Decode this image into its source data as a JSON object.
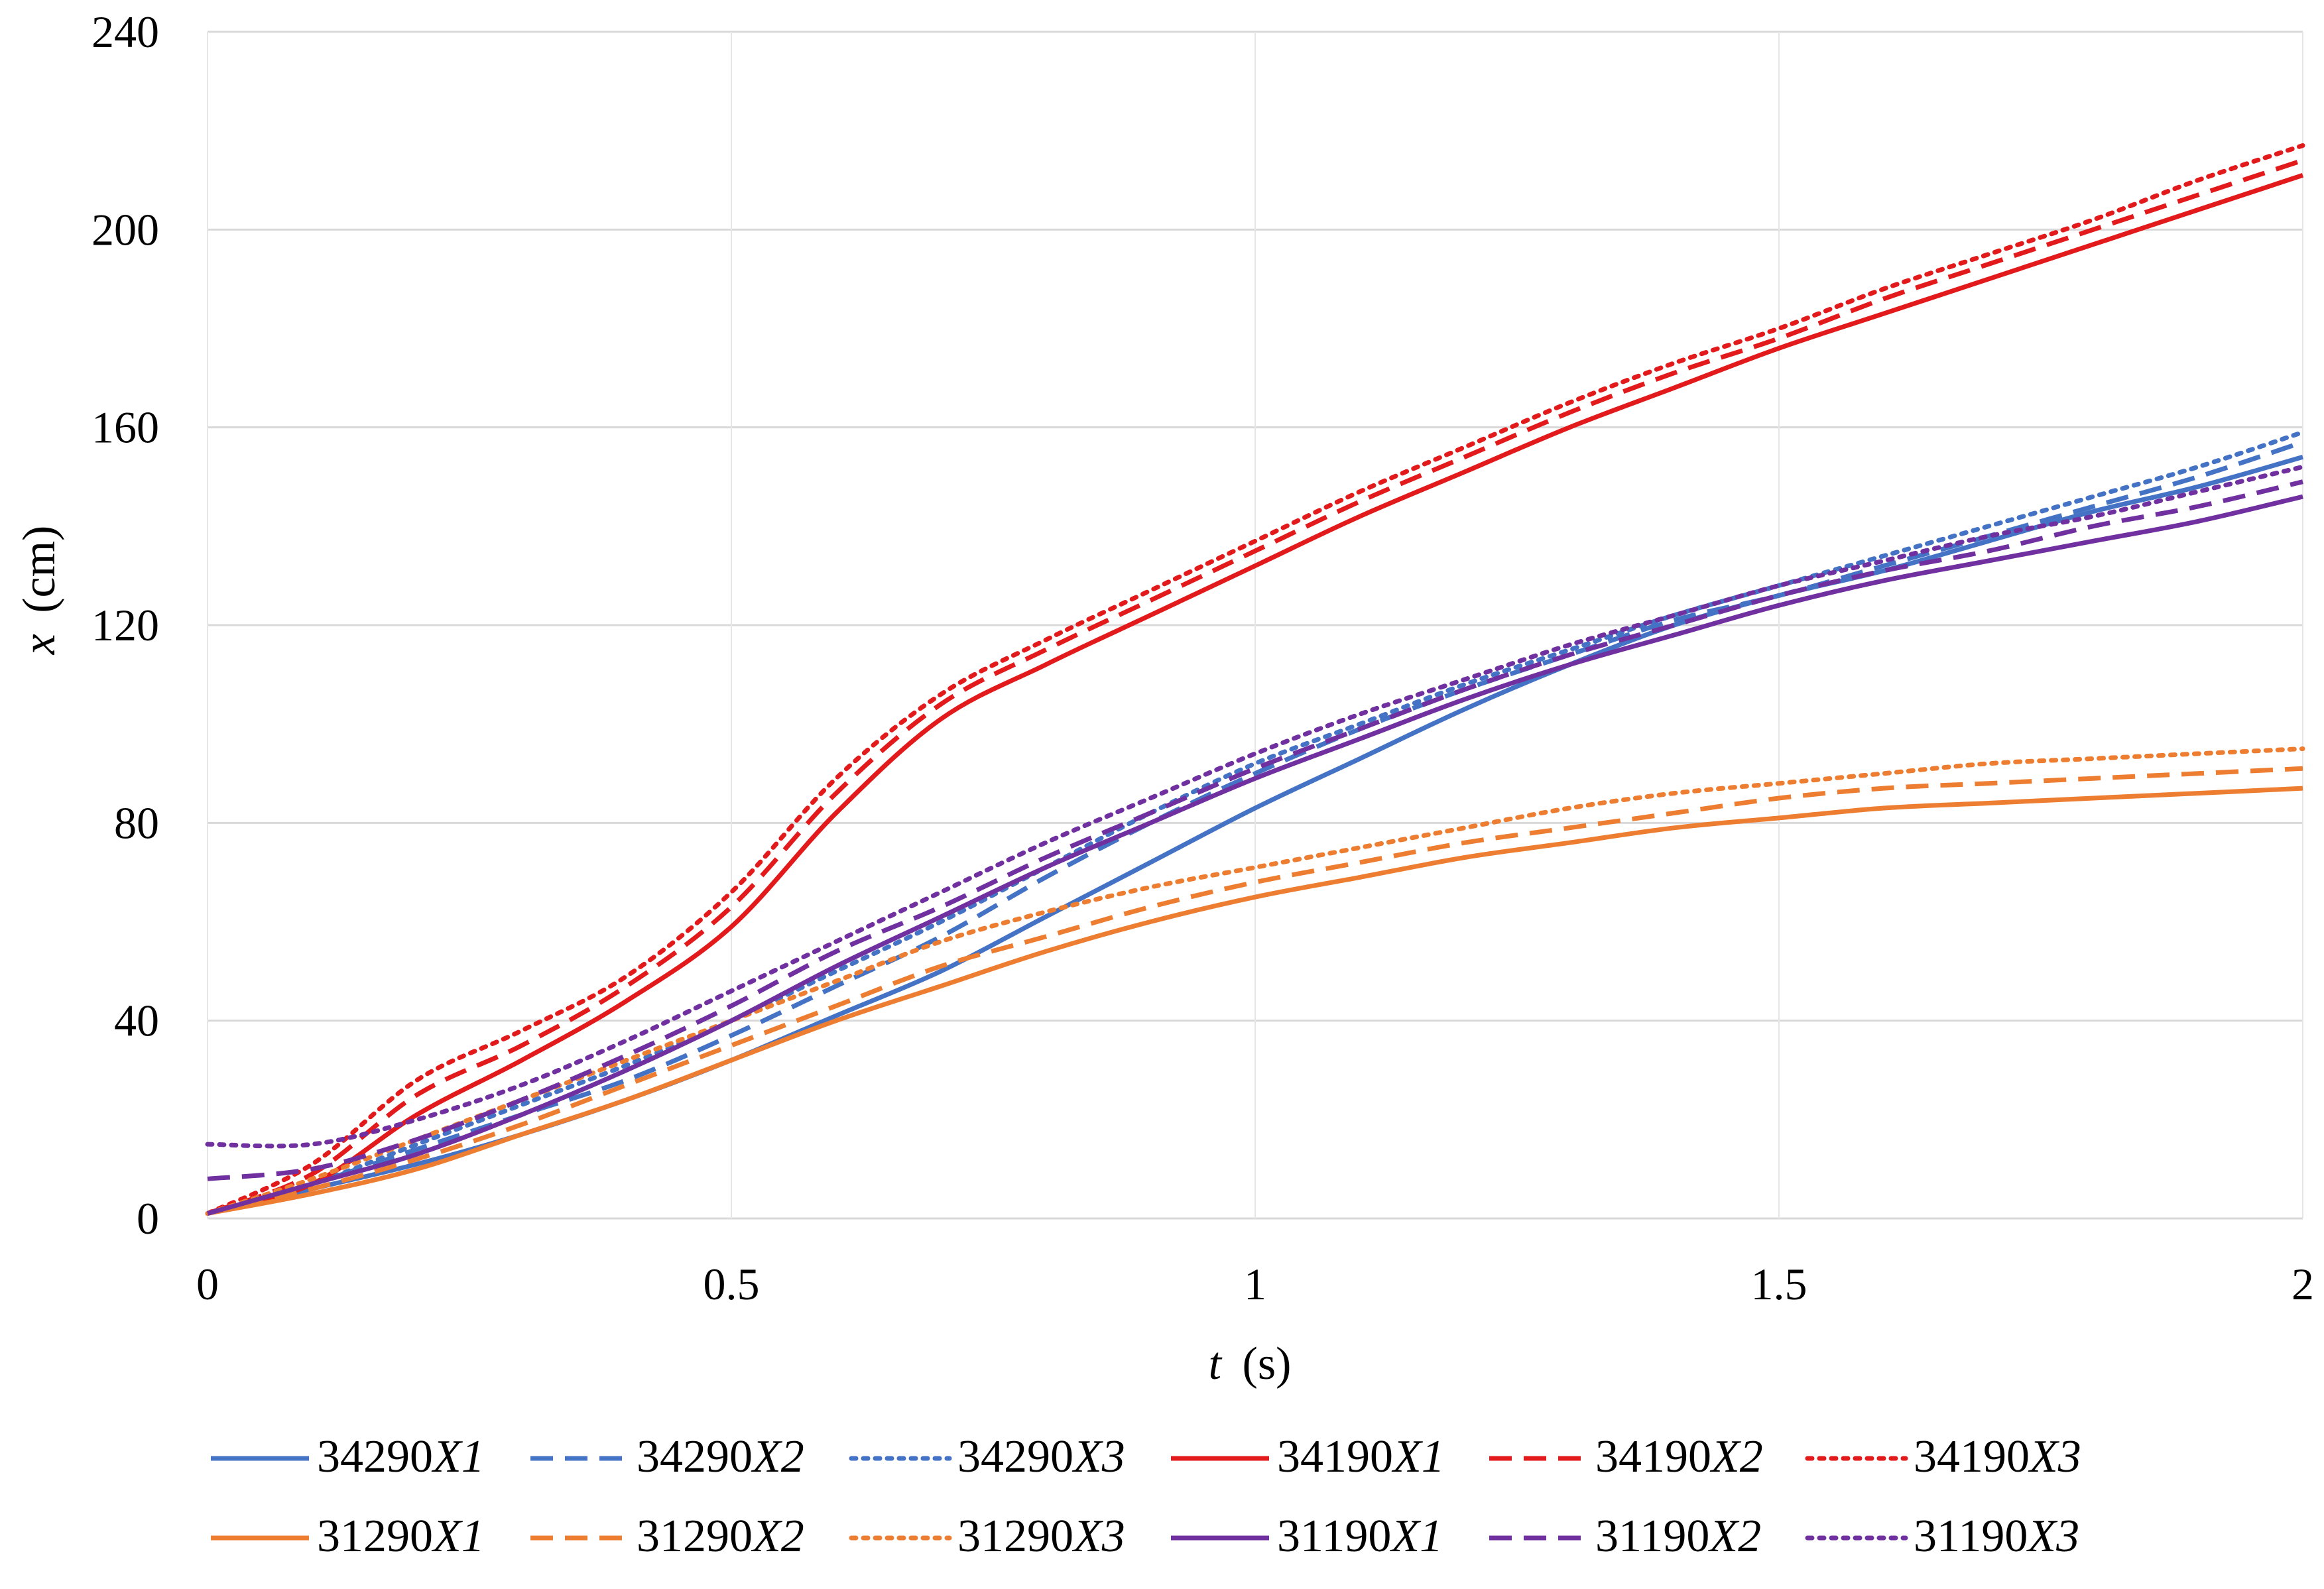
{
  "chart_data": {
    "type": "line",
    "title": "",
    "xlabel_var": "t",
    "xlabel_unit": "(s)",
    "ylabel_var": "x",
    "ylabel_unit": "(cm)",
    "xlim": [
      0,
      2
    ],
    "ylim": [
      0,
      240
    ],
    "xticks": [
      0,
      0.5,
      1,
      1.5,
      2
    ],
    "xtick_labels": [
      "0",
      "0.5",
      "1",
      "1.5",
      "2"
    ],
    "yticks": [
      0,
      40,
      80,
      120,
      160,
      200,
      240
    ],
    "ytick_labels": [
      "0",
      "40",
      "80",
      "120",
      "160",
      "200",
      "240"
    ],
    "grid": true,
    "legend_position": "bottom",
    "x": [
      0,
      0.1,
      0.2,
      0.3,
      0.4,
      0.5,
      0.6,
      0.7,
      0.8,
      0.9,
      1.0,
      1.1,
      1.2,
      1.3,
      1.4,
      1.5,
      1.6,
      1.7,
      1.8,
      1.9,
      2.0
    ],
    "series": [
      {
        "name_prefix": "34290",
        "name_var": "X1",
        "color": "#4472C4",
        "dash": "solid",
        "values": [
          1,
          6,
          11,
          17,
          24,
          32,
          41,
          50,
          61,
          72,
          83,
          93,
          103,
          112,
          120,
          126,
          131,
          137,
          143,
          148,
          154
        ]
      },
      {
        "name_prefix": "34290",
        "name_var": "X2",
        "color": "#4472C4",
        "dash": "dashed",
        "values": [
          1,
          7,
          14,
          21,
          28,
          37,
          47,
          57,
          69,
          80,
          90,
          99,
          107,
          114,
          121,
          126,
          132,
          138,
          144,
          150,
          157
        ]
      },
      {
        "name_prefix": "34290",
        "name_var": "X3",
        "color": "#4472C4",
        "dash": "dotted",
        "values": [
          1,
          7,
          15,
          23,
          31,
          40,
          50,
          60,
          71,
          82,
          92,
          100,
          108,
          115,
          122,
          128,
          134,
          140,
          146,
          152,
          159
        ]
      },
      {
        "name_prefix": "34190",
        "name_var": "X1",
        "color": "#E31A1C",
        "dash": "solid",
        "values": [
          1,
          7,
          21,
          32,
          44,
          59,
          82,
          101,
          112,
          122,
          132,
          142,
          151,
          160,
          168,
          176,
          183,
          190,
          197,
          204,
          211
        ]
      },
      {
        "name_prefix": "34190",
        "name_var": "X2",
        "color": "#E31A1C",
        "dash": "dashed",
        "values": [
          1,
          9,
          25,
          35,
          47,
          63,
          86,
          104,
          115,
          125,
          135,
          145,
          154,
          163,
          171,
          178,
          186,
          193,
          200,
          207,
          214
        ]
      },
      {
        "name_prefix": "34190",
        "name_var": "X3",
        "color": "#E31A1C",
        "dash": "dotted",
        "values": [
          1,
          11,
          28,
          38,
          49,
          66,
          89,
          106,
          117,
          127,
          137,
          147,
          156,
          165,
          173,
          180,
          188,
          195,
          202,
          210,
          217
        ]
      },
      {
        "name_prefix": "31290",
        "name_var": "X1",
        "color": "#ED7D31",
        "dash": "solid",
        "values": [
          1,
          5,
          10,
          17,
          24,
          32,
          40,
          47,
          54,
          60,
          65,
          69,
          73,
          76,
          79,
          81,
          83,
          84,
          85,
          86,
          87
        ]
      },
      {
        "name_prefix": "31290",
        "name_var": "X2",
        "color": "#ED7D31",
        "dash": "dashed",
        "values": [
          1,
          6,
          12,
          19,
          27,
          35,
          43,
          51,
          57,
          63,
          68,
          72,
          76,
          79,
          82,
          85,
          87,
          88,
          89,
          90,
          91
        ]
      },
      {
        "name_prefix": "31290",
        "name_var": "X3",
        "color": "#ED7D31",
        "dash": "dotted",
        "values": [
          1,
          8,
          16,
          24,
          32,
          40,
          48,
          56,
          62,
          67,
          71,
          75,
          79,
          83,
          86,
          88,
          90,
          92,
          93,
          94,
          95
        ]
      },
      {
        "name_prefix": "31190",
        "name_var": "X1",
        "color": "#7030A0",
        "dash": "solid",
        "values": [
          1,
          7,
          13,
          21,
          30,
          40,
          51,
          61,
          71,
          80,
          89,
          97,
          105,
          112,
          118,
          124,
          129,
          133,
          137,
          141,
          146
        ]
      },
      {
        "name_prefix": "31190",
        "name_var": "X2",
        "color": "#7030A0",
        "dash": "dashed",
        "values": [
          8,
          10,
          16,
          24,
          33,
          43,
          54,
          63,
          73,
          82,
          91,
          99,
          107,
          114,
          120,
          126,
          131,
          135,
          140,
          144,
          149
        ]
      },
      {
        "name_prefix": "31190",
        "name_var": "X3",
        "color": "#7030A0",
        "dash": "dotted",
        "values": [
          15,
          15,
          20,
          27,
          36,
          46,
          56,
          66,
          76,
          85,
          94,
          102,
          109,
          116,
          122,
          128,
          133,
          138,
          142,
          147,
          152
        ]
      }
    ]
  }
}
